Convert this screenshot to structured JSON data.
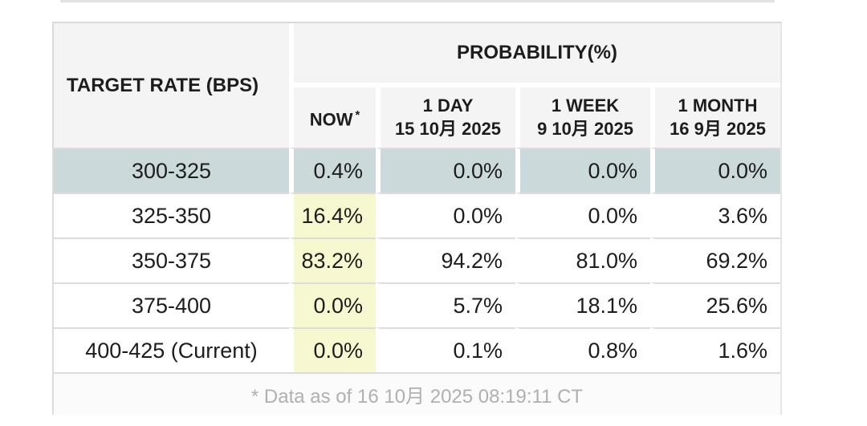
{
  "colors": {
    "highlight_row_blue": "#ccd9db",
    "highlight_cell_yellow": "#f7f7d0",
    "header_gray": "#f4f4f4",
    "border_gray": "#dcdcdc",
    "footnote_gray": "#b0b0b0",
    "text": "#1d1d1d",
    "background": "#ffffff"
  },
  "table": {
    "corner_label": "TARGET RATE (BPS)",
    "probability_label": "PROBABILITY(%)",
    "now_label": "NOW",
    "now_asterisk": "*",
    "columns": [
      {
        "label": "1 DAY",
        "date": "15 10月 2025"
      },
      {
        "label": "1 WEEK",
        "date": "9 10月 2025"
      },
      {
        "label": "1 MONTH",
        "date": "16 9月 2025"
      }
    ],
    "rows": [
      {
        "range": "300-325",
        "now": "0.4%",
        "day": "0.0%",
        "week": "0.0%",
        "month": "0.0%"
      },
      {
        "range": "325-350",
        "now": "16.4%",
        "day": "0.0%",
        "week": "0.0%",
        "month": "3.6%"
      },
      {
        "range": "350-375",
        "now": "83.2%",
        "day": "94.2%",
        "week": "81.0%",
        "month": "69.2%"
      },
      {
        "range": "375-400",
        "now": "0.0%",
        "day": "5.7%",
        "week": "18.1%",
        "month": "25.6%"
      },
      {
        "range": "400-425 (Current)",
        "now": "0.0%",
        "day": "0.1%",
        "week": "0.8%",
        "month": "1.6%"
      }
    ],
    "footnote": "* Data as of 16 10月 2025 08:19:11 CT"
  },
  "chart_data": {
    "type": "table",
    "title": "PROBABILITY(%)",
    "row_header": "TARGET RATE (BPS)",
    "categories": [
      "300-325",
      "325-350",
      "350-375",
      "375-400",
      "400-425 (Current)"
    ],
    "series": [
      {
        "name": "NOW *",
        "values": [
          0.4,
          16.4,
          83.2,
          0.0,
          0.0
        ]
      },
      {
        "name": "1 DAY 15 10月 2025",
        "values": [
          0.0,
          0.0,
          94.2,
          5.7,
          0.1
        ]
      },
      {
        "name": "1 WEEK 9 10月 2025",
        "values": [
          0.0,
          0.0,
          81.0,
          18.1,
          0.8
        ]
      },
      {
        "name": "1 MONTH 16 9月 2025",
        "values": [
          0.0,
          3.6,
          69.2,
          25.6,
          1.6
        ]
      }
    ],
    "highlighted_row": "300-325",
    "highlighted_column": "NOW *",
    "footnote": "* Data as of 16 10月 2025 08:19:11 CT",
    "units": "percent"
  }
}
